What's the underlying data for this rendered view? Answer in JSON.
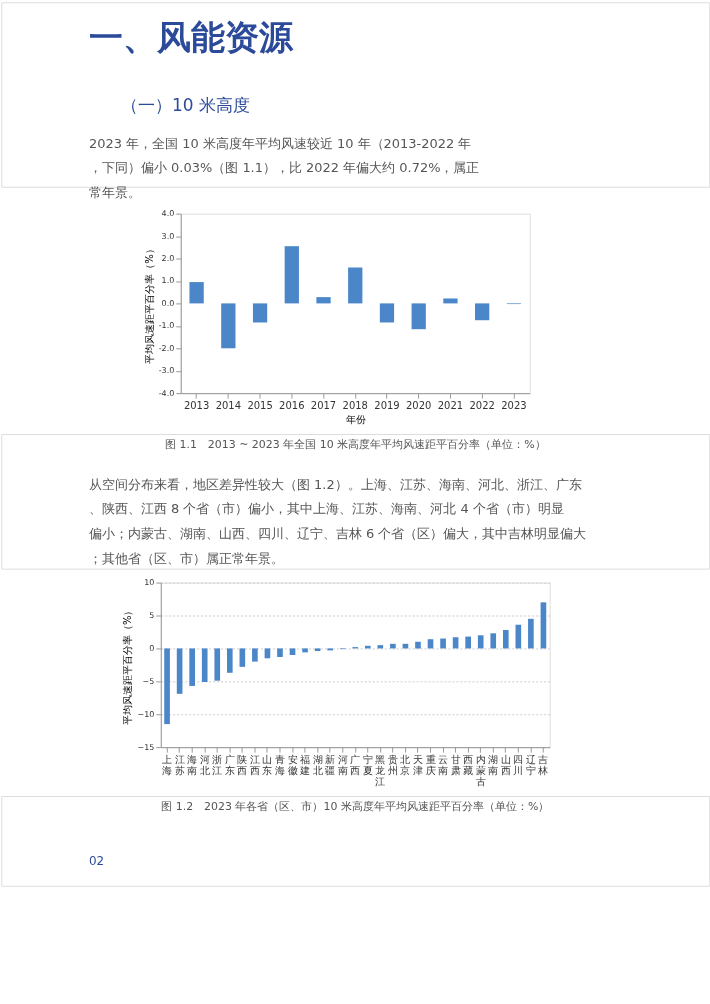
{
  "chart_data": [
    {
      "type": "bar",
      "title": "一、风能资源",
      "subtitle": "（一）10 米高度",
      "xlabel": "年份",
      "ylabel": "平均风速距平百分率（%）",
      "annotations": [
        "2023 年，全国 10 米高度年平均风速较近 10 年（2013-2022 年，下同）偏小 0.03%（图 1.1），比 2022 年偏大约 0.72%，属正常年景。",
        "图 1.1　2013 ~ 2023 年全国 10 米高度年平均风速距平百分率（单位：%）"
      ],
      "categories": [
        "2013",
        "2014",
        "2015",
        "2016",
        "2017",
        "2018",
        "2019",
        "2020",
        "2021",
        "2022",
        "2023"
      ],
      "values": [
        0.95,
        -2.0,
        -0.85,
        2.55,
        0.28,
        1.6,
        -0.85,
        -1.15,
        0.22,
        -0.75,
        -0.03
      ],
      "color": "#4a86c8",
      "ylim": [
        -4,
        4
      ],
      "yticks": [
        {
          "value": -4,
          "label": "-4.0"
        },
        {
          "value": -3,
          "label": "-3.0"
        },
        {
          "value": -2,
          "label": "-2.0"
        },
        {
          "value": -1,
          "label": "-1.0"
        },
        {
          "value": 0,
          "label": "0.0"
        },
        {
          "value": 1,
          "label": "1.0"
        },
        {
          "value": 2,
          "label": "2.0"
        },
        {
          "value": 3,
          "label": "3.0"
        },
        {
          "value": 4,
          "label": "4.0"
        }
      ],
      "grid": false
    },
    {
      "type": "bar",
      "ylabel": "平均风速距平百分率（%）",
      "annotations": [
        "从空间分布来看，地区差异性较大（图 1.2）。上海、江苏、海南、河北、浙江、广东、陕西、江西 8 个省（市）偏小，其中上海、江苏、海南、河北 4 个省（市）明显偏小；内蒙古、湖南、山西、四川、辽宁、吉林 6 个省（区）偏大，其中吉林明显偏大；其他省（区、市）属正常年景。",
        "图 1.2　2023 年各省（区、市）10 米高度年平均风速距平百分率（单位：%）",
        "02"
      ],
      "categories": [
        "上海",
        "江苏",
        "海南",
        "河北",
        "浙江",
        "广东",
        "陕西",
        "江西",
        "山东",
        "青海",
        "安徽",
        "福建",
        "湖北",
        "新疆",
        "河南",
        "广西",
        "宁夏",
        "黑龙江",
        "贵州",
        "北京",
        "天津",
        "重庆",
        "云南",
        "甘肃",
        "西藏",
        "内蒙古",
        "湖南",
        "山西",
        "四川",
        "辽宁",
        "吉林"
      ],
      "values": [
        -11.5,
        -6.9,
        -5.7,
        -5.1,
        -4.9,
        -3.7,
        -2.8,
        -2.0,
        -1.5,
        -1.3,
        -1.0,
        -0.6,
        -0.4,
        -0.3,
        -0.1,
        0.2,
        0.4,
        0.5,
        0.7,
        0.7,
        1.0,
        1.4,
        1.5,
        1.7,
        1.8,
        2.0,
        2.3,
        2.8,
        3.6,
        4.5,
        7.0
      ],
      "color": "#4a86c8",
      "ylim": [
        -15,
        10
      ],
      "yticks": [
        {
          "value": -15,
          "label": "−15"
        },
        {
          "value": -10,
          "label": "−10"
        },
        {
          "value": -5,
          "label": "−5"
        },
        0,
        5,
        10
      ],
      "grid": "y"
    }
  ]
}
